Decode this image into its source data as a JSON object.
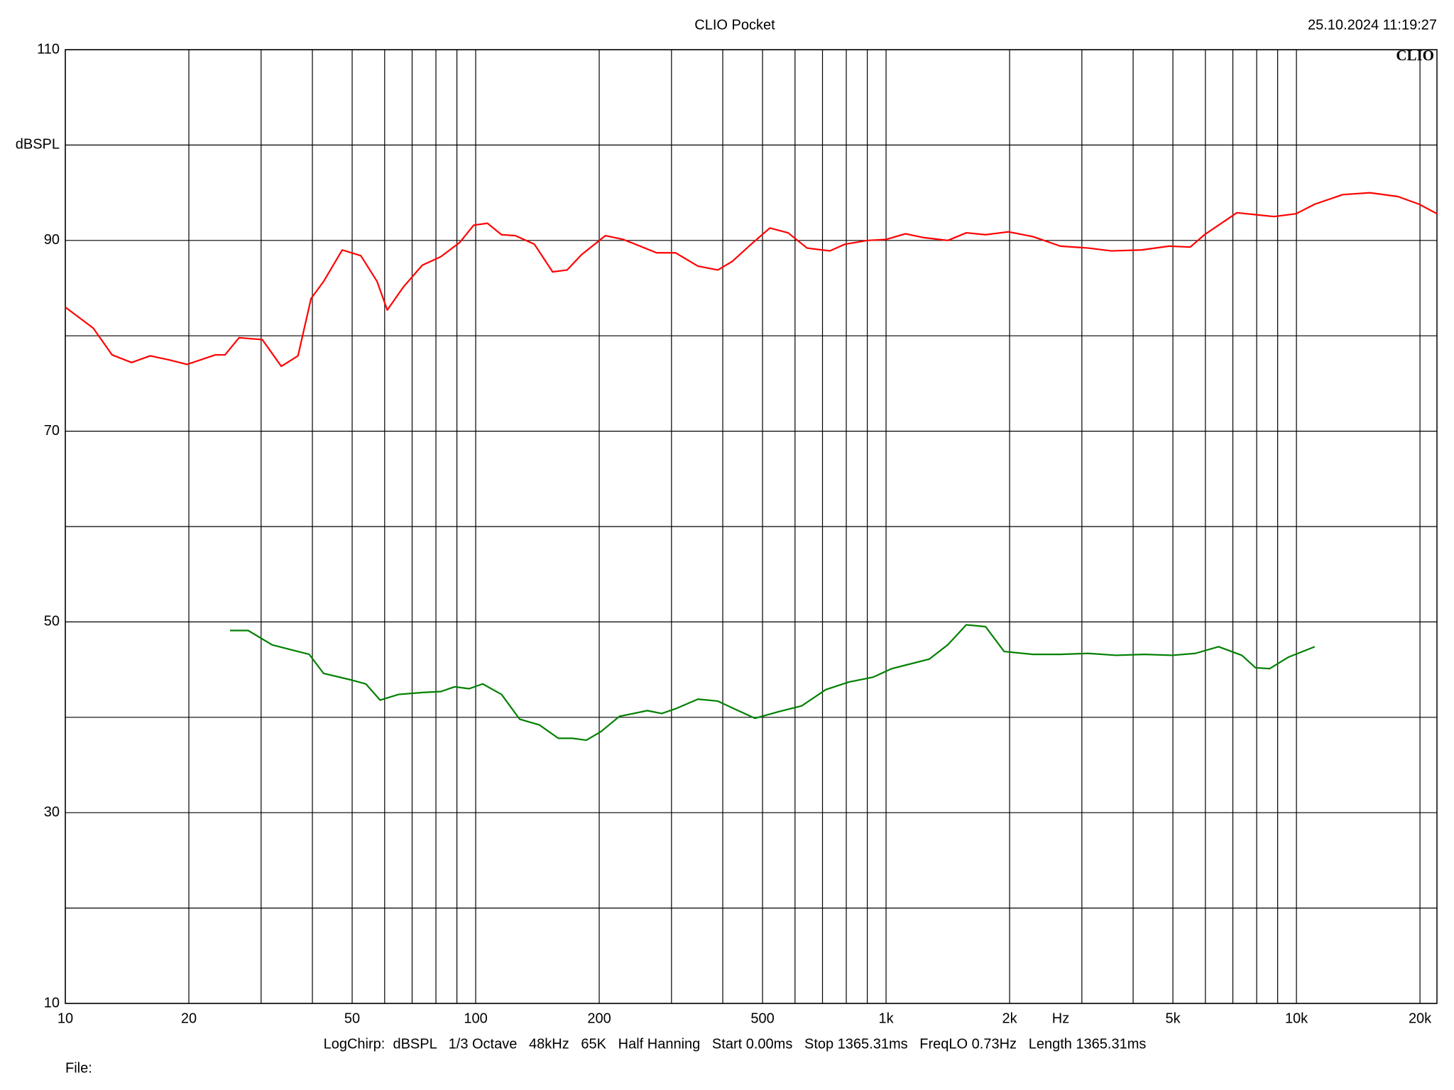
{
  "chart_data": {
    "type": "line",
    "title": "CLIO Pocket",
    "timestamp": "25.10.2024 11:19:27",
    "logo": "CLIO",
    "ylabel": "dBSPL",
    "xlabel": "Hz",
    "footer": "LogChirp:  dBSPL   1/3 Octave   48kHz   65K   Half Hanning   Start 0.00ms   Stop 1365.31ms   FreqLO 0.73Hz   Length 1365.31ms",
    "file_label": "File:",
    "xscale": "log",
    "grid": true,
    "xlim": [
      10,
      22000
    ],
    "ylim": [
      10,
      110
    ],
    "xticks": [
      10,
      20,
      50,
      100,
      200,
      500,
      {
        "value": 1000,
        "label": "1k"
      },
      {
        "value": 2000,
        "label": "2k"
      },
      {
        "value": 5000,
        "label": "5k"
      },
      {
        "value": 10000,
        "label": "10k"
      },
      {
        "value": 20000,
        "label": "20k"
      }
    ],
    "xminor": [
      30,
      40,
      60,
      70,
      80,
      90,
      300,
      400,
      600,
      700,
      800,
      900,
      3000,
      4000,
      6000,
      7000,
      8000,
      9000
    ],
    "yticks": [
      10,
      30,
      50,
      70,
      90,
      110
    ],
    "yminor": [
      20,
      40,
      60,
      80,
      100
    ],
    "series": [
      {
        "color": "#ff0000",
        "x": [
          10,
          11.7,
          13,
          14.5,
          16.1,
          17.8,
          19.8,
          23.2,
          24.5,
          26.5,
          30.2,
          33.6,
          36.9,
          39.7,
          42.6,
          47.3,
          52.5,
          57.5,
          60.9,
          66.6,
          74.1,
          82.3,
          91.5,
          98.9,
          106.8,
          115.6,
          125,
          139,
          154,
          167,
          181,
          207,
          229,
          276,
          307,
          348,
          389,
          422,
          469,
          521,
          577,
          642,
          729,
          794,
          901,
          1000,
          1115,
          1233,
          1414,
          1569,
          1748,
          1987,
          2280,
          2660,
          3110,
          3540,
          4190,
          4890,
          5510,
          5970,
          6460,
          7160,
          7950,
          8820,
          9980,
          11080,
          12960,
          15100,
          17680,
          19900,
          22000
        ],
        "values": [
          83.0,
          80.8,
          78.0,
          77.2,
          77.9,
          77.5,
          77.0,
          78.0,
          78.0,
          79.8,
          79.6,
          76.8,
          77.9,
          83.9,
          85.7,
          89.0,
          88.4,
          85.7,
          82.7,
          85.1,
          87.4,
          88.3,
          89.8,
          91.6,
          91.8,
          90.6,
          90.5,
          89.6,
          86.7,
          86.9,
          88.5,
          90.5,
          90.1,
          88.7,
          88.7,
          87.3,
          86.9,
          87.8,
          89.6,
          91.3,
          90.8,
          89.2,
          88.9,
          89.6,
          90.0,
          90.1,
          90.7,
          90.3,
          90.0,
          90.8,
          90.6,
          90.9,
          90.4,
          89.4,
          89.2,
          88.9,
          89.0,
          89.4,
          89.3,
          90.6,
          91.6,
          92.9,
          92.7,
          92.5,
          92.8,
          93.8,
          94.8,
          95.0,
          94.6,
          93.8,
          92.8
        ]
      },
      {
        "color": "#008000",
        "x": [
          25.2,
          27.9,
          31.9,
          35.4,
          39.3,
          42.6,
          49.9,
          54,
          58.5,
          64.9,
          74.1,
          82.3,
          88.9,
          96.4,
          104,
          115.6,
          128,
          143,
          159,
          172,
          186,
          202,
          224,
          262,
          284,
          307,
          348,
          389,
          431,
          479,
          549,
          623,
          713,
          812,
          929,
          1032,
          1274,
          1414,
          1569,
          1748,
          1940,
          2280,
          2660,
          3110,
          3640,
          4260,
          4980,
          5670,
          6460,
          7360,
          7950,
          8600,
          9550,
          11080
        ],
        "values": [
          49.1,
          49.1,
          47.6,
          47.1,
          46.6,
          44.6,
          43.9,
          43.5,
          41.8,
          42.4,
          42.6,
          42.7,
          43.2,
          43.0,
          43.5,
          42.4,
          39.8,
          39.2,
          37.8,
          37.8,
          37.6,
          38.5,
          40.1,
          40.7,
          40.4,
          40.9,
          41.9,
          41.7,
          40.8,
          39.9,
          40.6,
          41.2,
          42.9,
          43.7,
          44.2,
          45.1,
          46.1,
          47.6,
          49.7,
          49.5,
          46.9,
          46.6,
          46.6,
          46.7,
          46.5,
          46.6,
          46.5,
          46.7,
          47.4,
          46.5,
          45.2,
          45.1,
          46.3,
          47.4
        ]
      }
    ]
  }
}
